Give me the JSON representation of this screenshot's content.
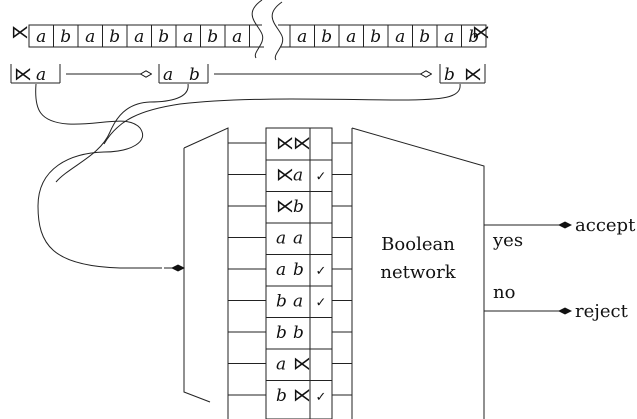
{
  "tape_left": [
    "a",
    "b",
    "a",
    "b",
    "a",
    "b",
    "a",
    "b",
    "a"
  ],
  "tape_right": [
    "a",
    "b",
    "a",
    "b",
    "a",
    "b",
    "a",
    "b"
  ],
  "end_marker": "⋉",
  "windows": {
    "w1": [
      "⋉",
      "a"
    ],
    "w2": [
      "a",
      "b"
    ],
    "w3": [
      "b",
      "⋉"
    ]
  },
  "table_rows": [
    {
      "c1": "⋉",
      "c2": "⋉",
      "check": ""
    },
    {
      "c1": "⋉",
      "c2": "a",
      "check": "✓"
    },
    {
      "c1": "⋉",
      "c2": "b",
      "check": ""
    },
    {
      "c1": "a",
      "c2": "a",
      "check": ""
    },
    {
      "c1": "a",
      "c2": "b",
      "check": "✓"
    },
    {
      "c1": "b",
      "c2": "a",
      "check": "✓"
    },
    {
      "c1": "b",
      "c2": "b",
      "check": ""
    },
    {
      "c1": "a",
      "c2": "⋉",
      "check": ""
    },
    {
      "c1": "b",
      "c2": "⋉",
      "check": "✓"
    }
  ],
  "network": {
    "line1": "Boolean",
    "line2": "network"
  },
  "outputs": {
    "yes": "yes",
    "no": "no",
    "accept": "accept",
    "reject": "reject"
  }
}
